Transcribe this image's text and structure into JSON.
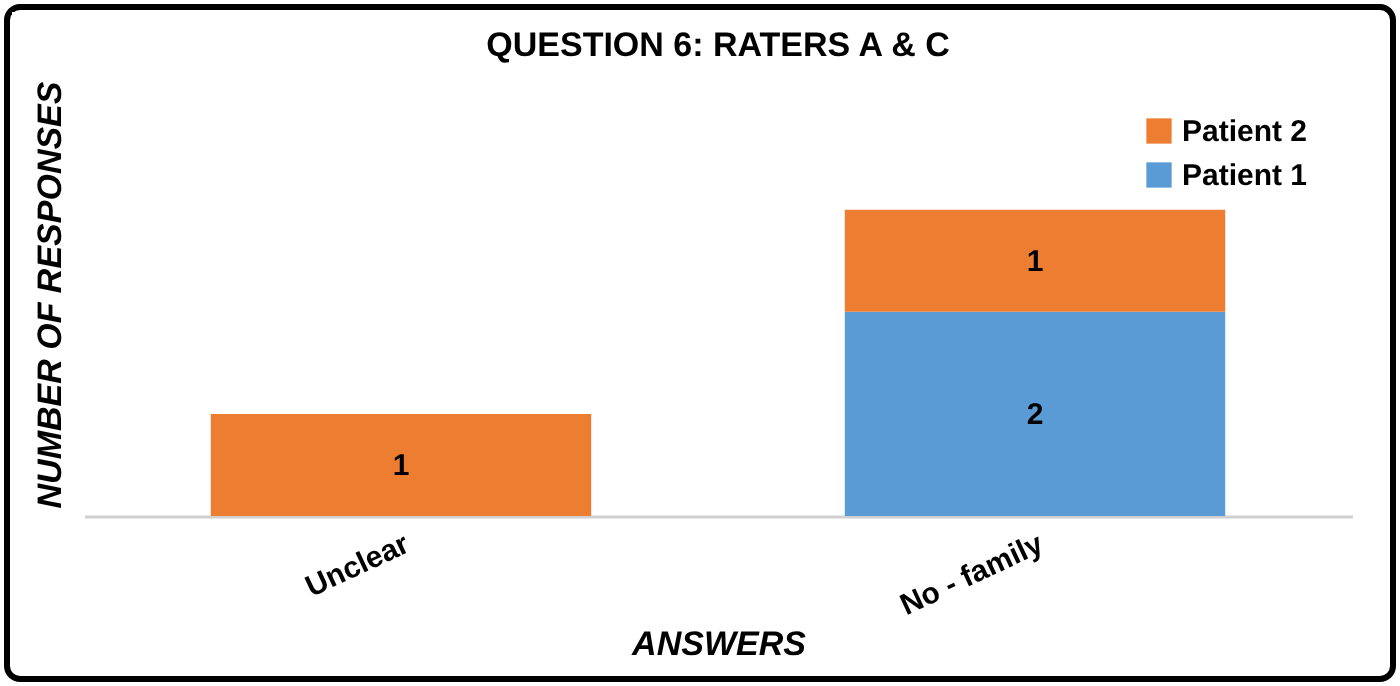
{
  "chart_data": {
    "type": "bar",
    "title": "QUESTION 6: RATERS A & C",
    "xlabel": "ANSWERS",
    "ylabel": "NUMBER OF RESPONSES",
    "categories": [
      "Unclear",
      "No - family"
    ],
    "stacked": true,
    "data_labels": true,
    "legend": "top right",
    "grid": false,
    "series": [
      {
        "name": "Patient 1",
        "color": "#5b9bd5",
        "values": [
          null,
          2
        ]
      },
      {
        "name": "Patient 2",
        "color": "#ed7d31",
        "values": [
          1,
          1
        ]
      }
    ]
  }
}
